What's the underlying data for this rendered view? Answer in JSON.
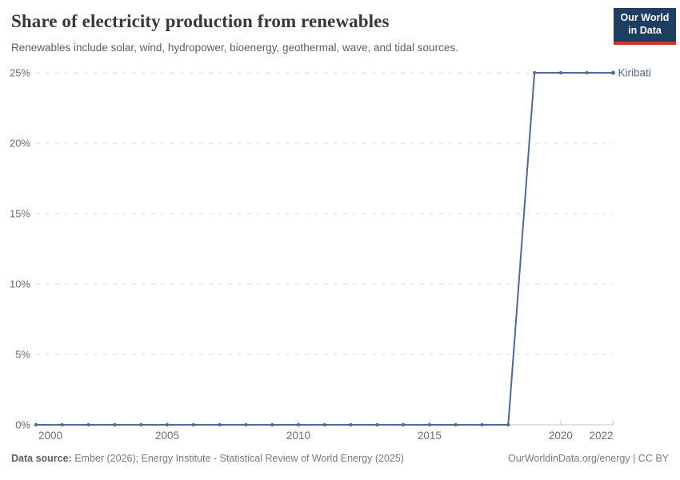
{
  "header": {
    "title": "Share of electricity production from renewables",
    "subtitle": "Renewables include solar, wind, hydropower, bioenergy, geothermal, wave, and tidal sources.",
    "logo": {
      "line1": "Our World",
      "line2": "in Data",
      "bg_color": "#1d3d63",
      "accent_color": "#d0362a"
    }
  },
  "footer": {
    "source_label": "Data source:",
    "source_text": " Ember (2026); Energy Institute - Statistical Review of World Energy (2025)",
    "right_text": "OurWorldinData.org/energy | CC BY"
  },
  "chart_data": {
    "type": "line",
    "title": "Share of electricity production from renewables",
    "xlabel": "",
    "ylabel": "",
    "xlim": [
      2000,
      2022
    ],
    "ylim": [
      0,
      25
    ],
    "grid": "horizontal-dashed",
    "legend_position": "end-of-line-label",
    "x_ticks": [
      2000,
      2005,
      2010,
      2015,
      2020,
      2022
    ],
    "y_ticks": [
      0,
      5,
      10,
      15,
      20,
      25
    ],
    "y_tick_suffix": "%",
    "x": [
      2000,
      2001,
      2002,
      2003,
      2004,
      2005,
      2006,
      2007,
      2008,
      2009,
      2010,
      2011,
      2012,
      2013,
      2014,
      2015,
      2016,
      2017,
      2018,
      2019,
      2020,
      2021,
      2022
    ],
    "series": [
      {
        "name": "Kiribati",
        "color": "#4c6a9c",
        "values": [
          0,
          0,
          0,
          0,
          0,
          0,
          0,
          0,
          0,
          0,
          0,
          0,
          0,
          0,
          0,
          0,
          0,
          0,
          0,
          25,
          25,
          25,
          25
        ]
      }
    ],
    "colors": {
      "gridline": "#dcdcdc",
      "axis": "#c6c6c6",
      "tick_label": "#6e6e6e"
    }
  }
}
